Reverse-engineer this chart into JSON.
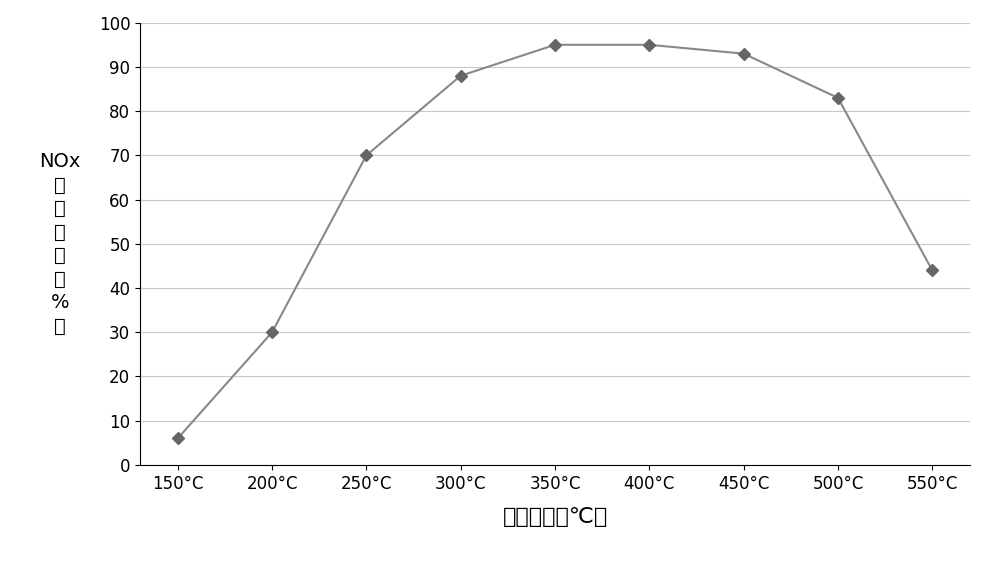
{
  "x_labels": [
    "150°C",
    "200°C",
    "250°C",
    "300°C",
    "350°C",
    "400°C",
    "450°C",
    "500°C",
    "550°C"
  ],
  "x_values": [
    150,
    200,
    250,
    300,
    350,
    400,
    450,
    500,
    550
  ],
  "y_values": [
    6,
    30,
    70,
    88,
    95,
    95,
    93,
    83,
    44
  ],
  "ylabel_lines": [
    "NOx",
    "转",
    "化",
    "效",
    "率",
    "～",
    "%",
    "）"
  ],
  "xlabel": "排气温度（℃）",
  "ylim": [
    0,
    100
  ],
  "yticks": [
    0,
    10,
    20,
    30,
    40,
    50,
    60,
    70,
    80,
    90,
    100
  ],
  "line_color": "#888888",
  "marker": "D",
  "marker_size": 6,
  "marker_color": "#666666",
  "bg_color": "#ffffff",
  "grid_color": "#c8c8c8",
  "ylabel_fontsize": 14,
  "xlabel_fontsize": 16,
  "tick_fontsize": 12,
  "xlim": [
    130,
    570
  ]
}
